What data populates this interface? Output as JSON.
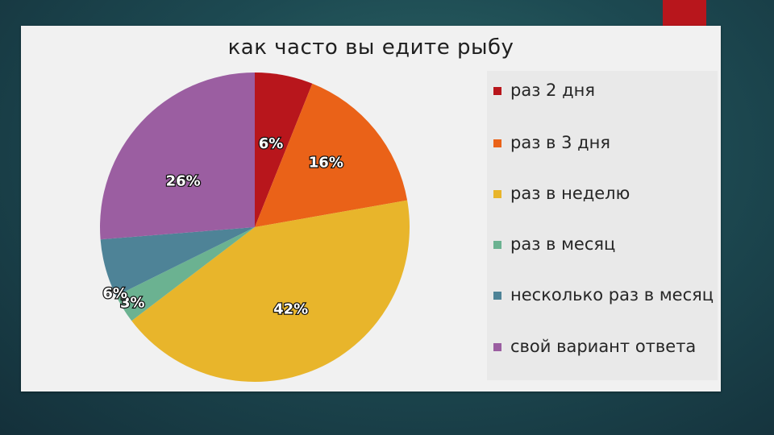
{
  "chart_data": {
    "type": "pie",
    "title": "как часто вы едите рыбу",
    "slices": [
      {
        "label": "раз 2 дня",
        "value": 6,
        "data_label": "6%",
        "color": "#b8161c"
      },
      {
        "label": "раз в 3 дня",
        "value": 16,
        "data_label": "16%",
        "color": "#ea6218"
      },
      {
        "label": "раз в неделю",
        "value": 42,
        "data_label": "42%",
        "color": "#e8b52b"
      },
      {
        "label": "раз в месяц",
        "value": 3,
        "data_label": "3%",
        "color": "#6bb291"
      },
      {
        "label": "несколько раз в месяц",
        "value": 6,
        "data_label": "6%",
        "color": "#4e8397"
      },
      {
        "label": "свой вариант ответа",
        "value": 26,
        "data_label": "26%",
        "color": "#9b5ea1"
      }
    ],
    "legend_position": "right",
    "start_angle_deg": 0,
    "direction": "clockwise"
  }
}
